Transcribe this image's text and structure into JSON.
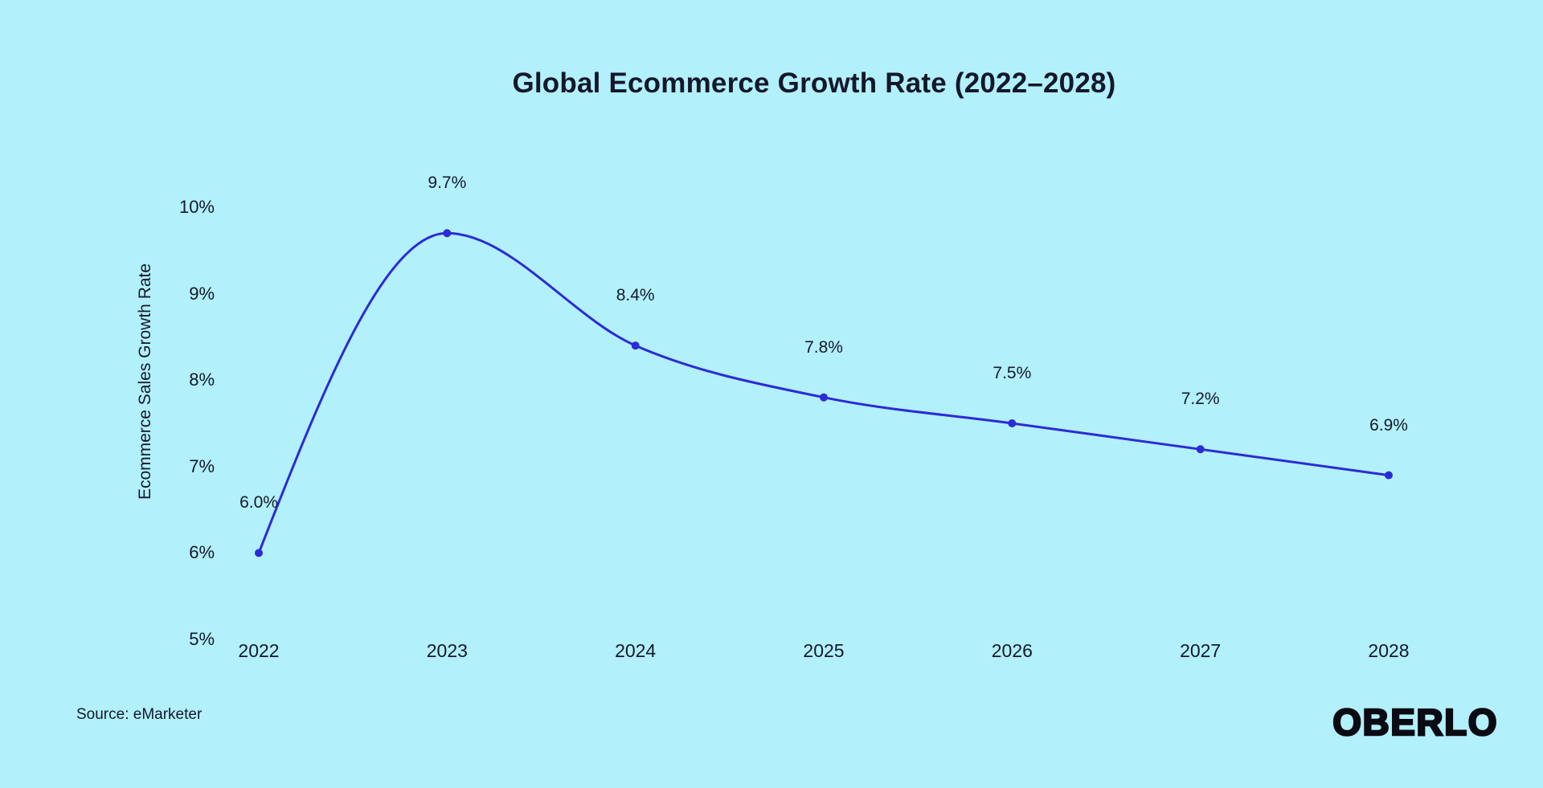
{
  "source": "Source: eMarketer",
  "brand": "OBERLO",
  "chart_data": {
    "type": "line",
    "title": "Global Ecommerce Growth Rate (2022–2028)",
    "categories": [
      "2022",
      "2023",
      "2024",
      "2025",
      "2026",
      "2027",
      "2028"
    ],
    "values": [
      6.0,
      9.7,
      8.4,
      7.8,
      7.5,
      7.2,
      6.9
    ],
    "point_labels": [
      "6.0%",
      "9.7%",
      "8.4%",
      "7.8%",
      "7.5%",
      "7.2%",
      "6.9%"
    ],
    "xlabel": "",
    "ylabel": "Ecommerce Sales Growth Rate",
    "ylim": [
      5,
      10
    ],
    "yticks": [
      {
        "value": 10,
        "label": "10%"
      },
      {
        "value": 9,
        "label": "9%"
      },
      {
        "value": 8,
        "label": "8%"
      },
      {
        "value": 7,
        "label": "7%"
      },
      {
        "value": 6,
        "label": "6%"
      },
      {
        "value": 5,
        "label": "5%"
      }
    ],
    "grid": false,
    "legend": false,
    "line_color": "#2c2bd6",
    "marker_color": "#2c2bd6",
    "background": "#b2f0fb",
    "text_color": "#14182b"
  }
}
